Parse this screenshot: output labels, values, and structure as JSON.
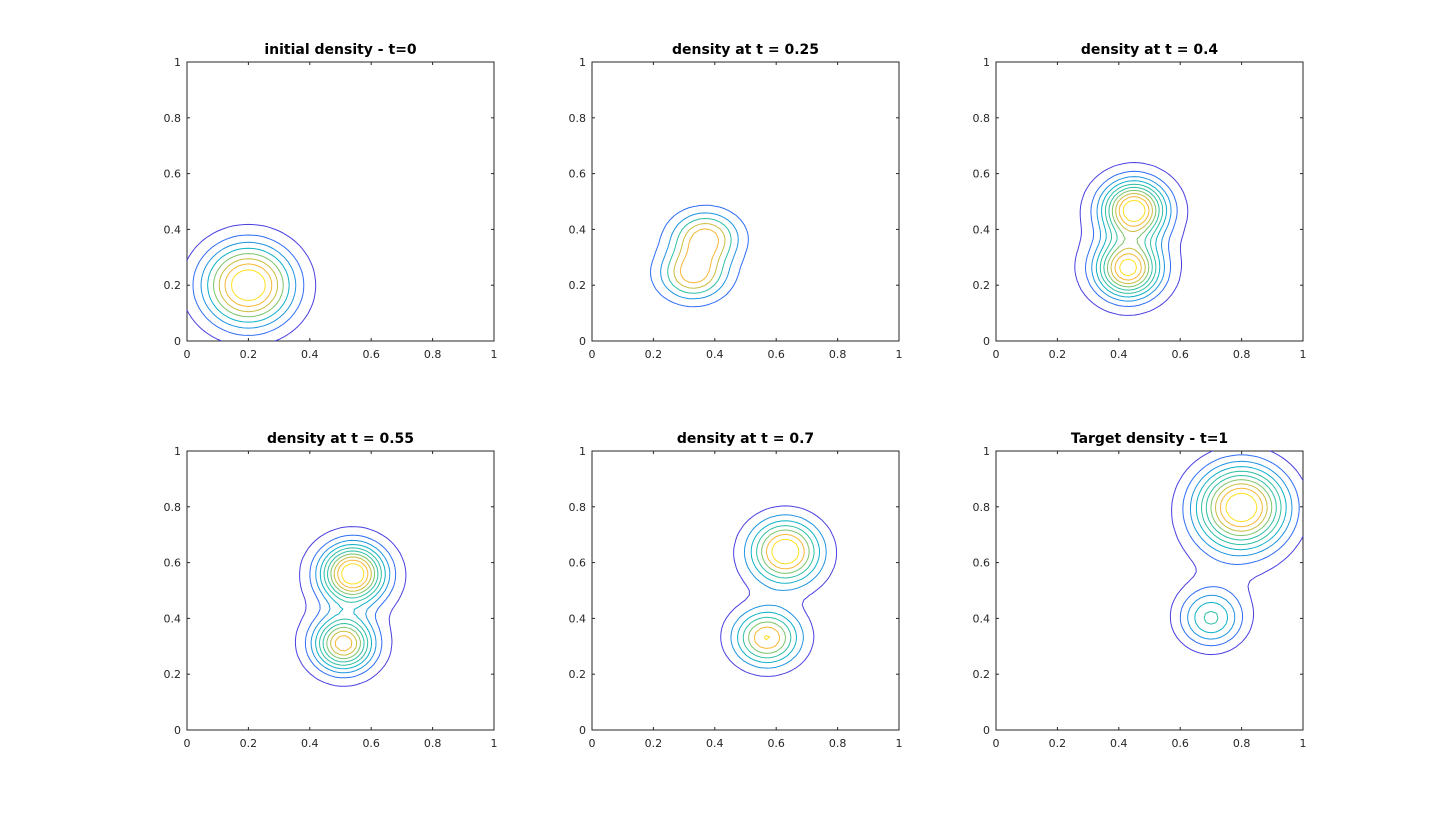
{
  "chart_data": [
    {
      "type": "contour",
      "title": "initial density - t=0",
      "xlim": [
        0,
        1
      ],
      "ylim": [
        0,
        1
      ],
      "xticks": [
        "0",
        "0.2",
        "0.4",
        "0.6",
        "0.8",
        "1"
      ],
      "yticks": [
        "0",
        "0.2",
        "0.4",
        "0.6",
        "0.8",
        "1"
      ],
      "contour_levels": 8,
      "peaks": [
        {
          "x": 0.2,
          "y": 0.2,
          "sx": 0.1,
          "sy": 0.1,
          "amp": 1.0
        }
      ],
      "spread": {
        "sx": 0.16,
        "sy": 0.15
      }
    },
    {
      "type": "contour",
      "title": "density at t = 0.25",
      "xlim": [
        0,
        1
      ],
      "ylim": [
        0,
        1
      ],
      "xticks": [
        "0",
        "0.2",
        "0.4",
        "0.6",
        "0.8",
        "1"
      ],
      "yticks": [
        "0",
        "0.2",
        "0.4",
        "0.6",
        "0.8",
        "1"
      ],
      "contour_levels": 5,
      "peaks": [
        {
          "x": 0.37,
          "y": 0.37,
          "sx": 0.07,
          "sy": 0.06,
          "amp": 1.0
        },
        {
          "x": 0.33,
          "y": 0.24,
          "sx": 0.07,
          "sy": 0.06,
          "amp": 1.0
        }
      ],
      "spread": {
        "sx": 0.22,
        "sy": 0.18
      }
    },
    {
      "type": "contour",
      "title": "density at t = 0.4",
      "xlim": [
        0,
        1
      ],
      "ylim": [
        0,
        1
      ],
      "xticks": [
        "0",
        "0.2",
        "0.4",
        "0.6",
        "0.8",
        "1"
      ],
      "yticks": [
        "0",
        "0.2",
        "0.4",
        "0.6",
        "0.8",
        "1"
      ],
      "contour_levels": 10,
      "peaks": [
        {
          "x": 0.45,
          "y": 0.47,
          "sx": 0.07,
          "sy": 0.07,
          "amp": 1.0
        },
        {
          "x": 0.43,
          "y": 0.26,
          "sx": 0.07,
          "sy": 0.07,
          "amp": 0.95
        }
      ],
      "spread": {
        "sx": 0.42,
        "sy": 0.35
      }
    },
    {
      "type": "contour",
      "title": "density at t = 0.55",
      "xlim": [
        0,
        1
      ],
      "ylim": [
        0,
        1
      ],
      "xticks": [
        "0",
        "0.2",
        "0.4",
        "0.6",
        "0.8",
        "1"
      ],
      "yticks": [
        "0",
        "0.2",
        "0.4",
        "0.6",
        "0.8",
        "1"
      ],
      "contour_levels": 10,
      "peaks": [
        {
          "x": 0.54,
          "y": 0.56,
          "sx": 0.07,
          "sy": 0.07,
          "amp": 1.0
        },
        {
          "x": 0.51,
          "y": 0.31,
          "sx": 0.065,
          "sy": 0.065,
          "amp": 0.85
        }
      ],
      "spread": {
        "sx": 0.38,
        "sy": 0.36
      }
    },
    {
      "type": "contour",
      "title": "density at t = 0.7",
      "xlim": [
        0,
        1
      ],
      "ylim": [
        0,
        1
      ],
      "xticks": [
        "0",
        "0.2",
        "0.4",
        "0.6",
        "0.8",
        "1"
      ],
      "yticks": [
        "0",
        "0.2",
        "0.4",
        "0.6",
        "0.8",
        "1"
      ],
      "contour_levels": 7,
      "peaks": [
        {
          "x": 0.63,
          "y": 0.64,
          "sx": 0.075,
          "sy": 0.075,
          "amp": 1.0
        },
        {
          "x": 0.57,
          "y": 0.33,
          "sx": 0.07,
          "sy": 0.065,
          "amp": 0.85
        }
      ],
      "spread": {
        "sx": 0.3,
        "sy": 0.3
      }
    },
    {
      "type": "contour",
      "title": "Target density - t=1",
      "xlim": [
        0,
        1
      ],
      "ylim": [
        0,
        1
      ],
      "xticks": [
        "0",
        "0.2",
        "0.4",
        "0.6",
        "0.8",
        "1"
      ],
      "yticks": [
        "0",
        "0.2",
        "0.4",
        "0.6",
        "0.8",
        "1"
      ],
      "contour_levels": 10,
      "peaks": [
        {
          "x": 0.8,
          "y": 0.8,
          "sx": 0.1,
          "sy": 0.1,
          "amp": 1.0
        },
        {
          "x": 0.7,
          "y": 0.4,
          "sx": 0.07,
          "sy": 0.07,
          "amp": 0.45
        }
      ],
      "spread": {
        "sx": 0.15,
        "sy": 0.17
      }
    }
  ],
  "colormap": [
    "#3e26a8",
    "#4a3fe0",
    "#2f6df4",
    "#1f94e0",
    "#0eb1c9",
    "#2fbfa4",
    "#7cc46b",
    "#c9bd3f",
    "#f6b736",
    "#fde01f",
    "#f9fb0e"
  ]
}
